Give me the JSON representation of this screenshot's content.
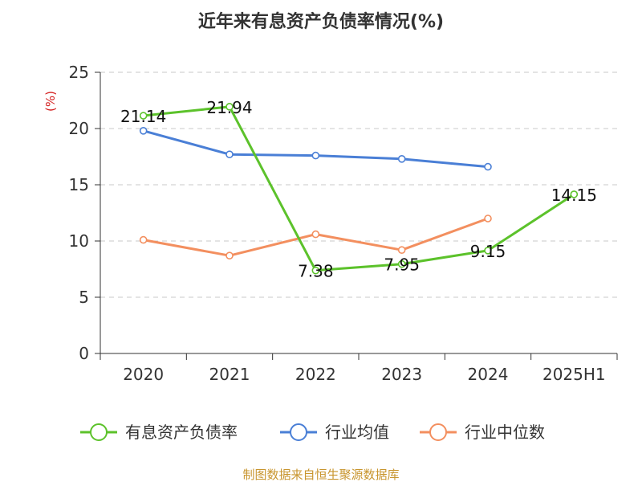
{
  "chart_data": {
    "type": "line",
    "title": "近年来有息资产负债率情况(%)",
    "ylabel": "(%)",
    "categories": [
      "2020",
      "2021",
      "2022",
      "2023",
      "2024",
      "2025H1"
    ],
    "ylim": [
      0,
      25
    ],
    "yticks": [
      0,
      5,
      10,
      15,
      20,
      25
    ],
    "grid": true,
    "legend_position": "bottom",
    "series": [
      {
        "name": "有息资产负债率",
        "color": "#5cc22b",
        "values": [
          21.14,
          21.94,
          7.38,
          7.95,
          9.15,
          14.15
        ],
        "show_labels": true
      },
      {
        "name": "行业均值",
        "color": "#4a7fd6",
        "values": [
          19.8,
          17.7,
          17.6,
          17.3,
          16.6,
          null
        ],
        "show_labels": false
      },
      {
        "name": "行业中位数",
        "color": "#f38f5f",
        "values": [
          10.1,
          8.7,
          10.6,
          9.2,
          12.0,
          null
        ],
        "show_labels": false
      }
    ],
    "source": "制图数据来自恒生聚源数据库",
    "source_color": "#c8952e",
    "unit_color": "#d42020"
  }
}
